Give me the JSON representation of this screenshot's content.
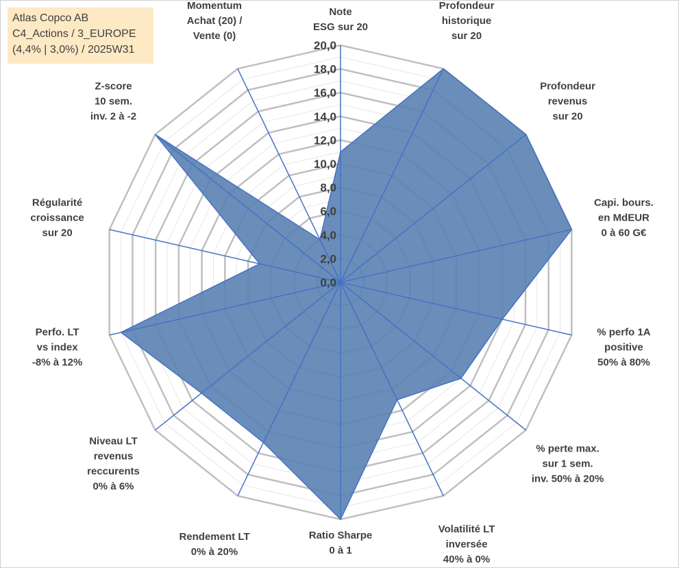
{
  "title_box": {
    "line1": "Atlas Copco AB",
    "line2": "C4_Actions / 3_EUROPE",
    "line3": "(4,4% | 3,0%) / 2025W31",
    "background": "#fde9c4"
  },
  "chart_data": {
    "type": "radar",
    "rmin": 0,
    "rmax": 20,
    "ticks": [
      "0,0",
      "2,0",
      "4,0",
      "6,0",
      "8,0",
      "10,0",
      "12,0",
      "14,0",
      "16,0",
      "18,0",
      "20,0"
    ],
    "tick_values": [
      0,
      2,
      4,
      6,
      8,
      10,
      12,
      14,
      16,
      18,
      20
    ],
    "minor_grid_step": 1,
    "axes": [
      {
        "label": [
          "Note",
          "ESG sur 20"
        ],
        "value": 11.0
      },
      {
        "label": [
          "Profondeur",
          "historique",
          "sur 20"
        ],
        "value": 20.0
      },
      {
        "label": [
          "Profondeur",
          "revenus",
          "sur 20"
        ],
        "value": 20.0
      },
      {
        "label": [
          "Capi. bours.",
          "en MdEUR",
          "0 à 60 G€"
        ],
        "value": 20.0
      },
      {
        "label": [
          "% perfo 1A",
          "positive",
          "50% à 80%"
        ],
        "value": 14.0
      },
      {
        "label": [
          "% perte max.",
          "sur 1 sem.",
          "inv. 50% à 20%"
        ],
        "value": 13.0
      },
      {
        "label": [
          "Volatilité LT",
          "inversée",
          "40% à 0%"
        ],
        "value": 11.0
      },
      {
        "label": [
          "Ratio Sharpe",
          "0 à 1"
        ],
        "value": 20.0
      },
      {
        "label": [
          "Rendement LT",
          "0% à 20%"
        ],
        "value": 15.0
      },
      {
        "label": [
          "Niveau LT",
          "revenus",
          "reccurents",
          "0% à 6%"
        ],
        "value": 15.0
      },
      {
        "label": [
          "Perfo. LT",
          "vs index",
          "-8% à 12%"
        ],
        "value": 19.0
      },
      {
        "label": [
          "Régularité",
          "croissance",
          "sur 20"
        ],
        "value": 7.0
      },
      {
        "label": [
          "Z-score",
          "10 sem.",
          "inv. 2 à -2"
        ],
        "value": 20.0
      },
      {
        "label": [
          "Momentum",
          "Achat (20) /",
          "Vente (0)"
        ],
        "value": 4.0
      }
    ],
    "series": [
      {
        "fill": "#5a81b2",
        "stroke": "#4472c4"
      }
    ],
    "grid_color": "#bfbfbf",
    "spoke_color": "#4472c4"
  }
}
